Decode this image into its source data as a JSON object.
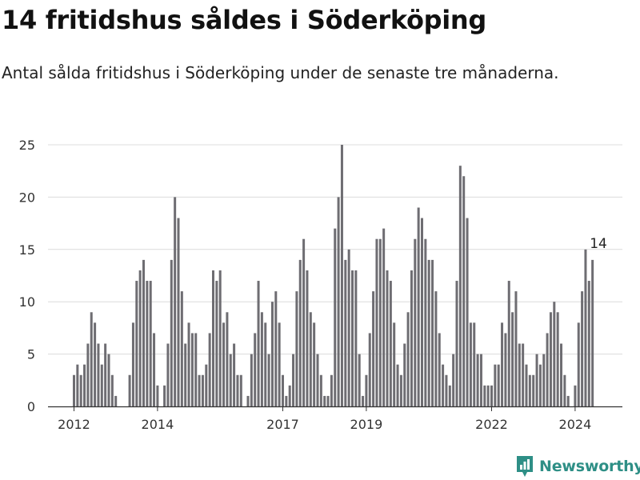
{
  "header": {
    "title": "14 fritidshus såldes i Söderköping",
    "subtitle": "Antal sålda fritidshus i Söderköping under de senaste tre månaderna."
  },
  "brand": {
    "name": "Newsworthy",
    "icon": "newsworthy-logo-icon",
    "color": "#2e8f86"
  },
  "colors": {
    "bar": "#6e6d72",
    "highlight": "#1a9a8c",
    "grid": "#dcdcdc",
    "axis": "#333333"
  },
  "chart_data": {
    "type": "bar",
    "title": "14 fritidshus såldes i Söderköping",
    "subtitle": "Antal sålda fritidshus i Söderköping under de senaste tre månaderna.",
    "xlabel": "",
    "ylabel": "",
    "ylim": [
      0,
      25
    ],
    "yticks": [
      0,
      5,
      10,
      15,
      20,
      25
    ],
    "x_ticks": [
      {
        "label": "2012",
        "index": 0
      },
      {
        "label": "2014",
        "index": 24
      },
      {
        "label": "2017",
        "index": 60
      },
      {
        "label": "2019",
        "index": 84
      },
      {
        "label": "2022",
        "index": 120
      },
      {
        "label": "2024",
        "index": 144
      }
    ],
    "grid": true,
    "frequency": "monthly",
    "start_period": "2012-01",
    "values": [
      3,
      4,
      3,
      4,
      6,
      9,
      8,
      6,
      4,
      6,
      5,
      3,
      1,
      0,
      0,
      0,
      3,
      8,
      12,
      13,
      14,
      12,
      12,
      7,
      2,
      0,
      2,
      6,
      14,
      20,
      18,
      11,
      6,
      8,
      7,
      7,
      3,
      3,
      4,
      7,
      13,
      12,
      13,
      8,
      9,
      5,
      6,
      3,
      3,
      0,
      1,
      5,
      7,
      12,
      9,
      8,
      5,
      10,
      11,
      8,
      3,
      1,
      2,
      5,
      11,
      14,
      16,
      13,
      9,
      8,
      5,
      3,
      1,
      1,
      3,
      17,
      20,
      25,
      14,
      15,
      13,
      13,
      5,
      1,
      3,
      7,
      11,
      16,
      16,
      17,
      13,
      12,
      8,
      4,
      3,
      6,
      9,
      13,
      16,
      19,
      18,
      16,
      14,
      14,
      11,
      7,
      4,
      3,
      2,
      5,
      12,
      23,
      22,
      18,
      8,
      8,
      5,
      5,
      2,
      2,
      2,
      4,
      4,
      8,
      7,
      12,
      9,
      11,
      6,
      6,
      4,
      3,
      3,
      5,
      4,
      5,
      7,
      9,
      10,
      9,
      6,
      3,
      1,
      0,
      2,
      8,
      11,
      15,
      12,
      14
    ],
    "highlight_index": 153,
    "annotation": {
      "label": "14",
      "index": 153,
      "value": 14
    }
  }
}
